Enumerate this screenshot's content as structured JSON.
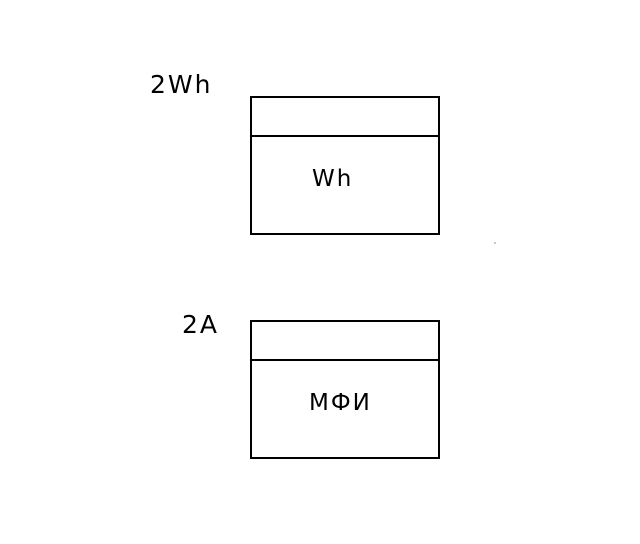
{
  "blocks": [
    {
      "side_label": "2Wh",
      "label": "Wh"
    },
    {
      "side_label": "2A",
      "label": "МФИ"
    }
  ]
}
